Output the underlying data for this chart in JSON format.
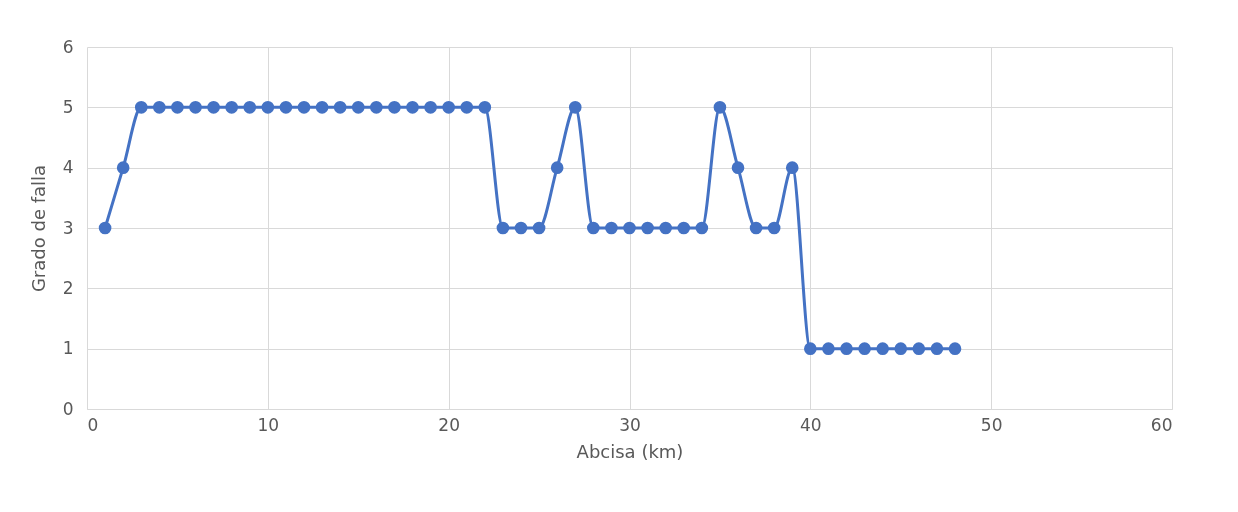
{
  "chart_data": {
    "type": "line",
    "xlabel": "Abcisa (km)",
    "ylabel": "Grado de falla",
    "x": [
      1,
      2,
      3,
      4,
      5,
      6,
      7,
      8,
      9,
      10,
      11,
      12,
      13,
      14,
      15,
      16,
      17,
      18,
      19,
      20,
      21,
      22,
      23,
      24,
      25,
      26,
      27,
      28,
      29,
      30,
      31,
      32,
      33,
      34,
      35,
      36,
      37,
      38,
      39,
      40,
      41,
      42,
      43,
      44,
      45,
      46,
      47,
      48
    ],
    "series": [
      {
        "color": "#4472c4",
        "values": [
          3,
          4,
          5,
          5,
          5,
          5,
          5,
          5,
          5,
          5,
          5,
          5,
          5,
          5,
          5,
          5,
          5,
          5,
          5,
          5,
          5,
          5,
          3,
          3,
          3,
          4,
          5,
          3,
          3,
          3,
          3,
          3,
          3,
          3,
          5,
          4,
          3,
          3,
          4,
          1,
          1,
          1,
          1,
          1,
          1,
          1,
          1,
          1
        ]
      }
    ],
    "xlim": [
      0,
      60
    ],
    "xticks": [
      0,
      10,
      20,
      30,
      40,
      50,
      60
    ],
    "ylim": [
      0,
      6
    ],
    "yticks": [
      0,
      1,
      2,
      3,
      4,
      5,
      6
    ],
    "grid": true,
    "marker": "circle",
    "line_style": "solid",
    "legend": false
  }
}
